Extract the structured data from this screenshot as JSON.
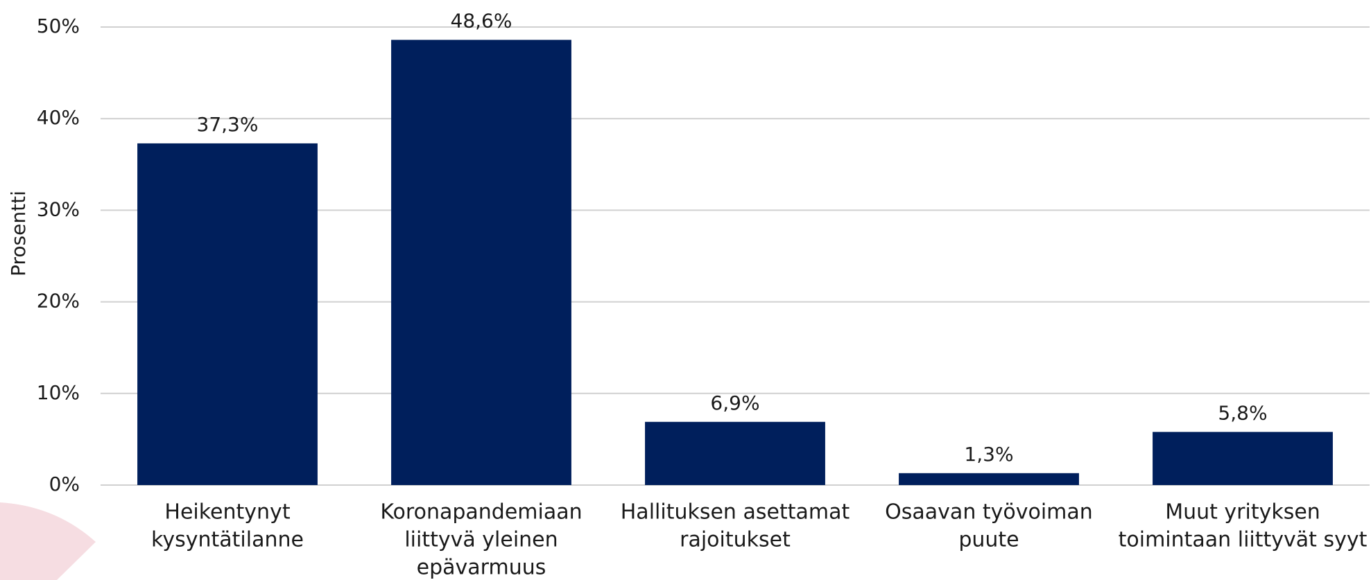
{
  "chart_data": {
    "type": "bar",
    "y_label": "Prosentti",
    "categories": [
      [
        "Heikentynyt",
        "kysyntätilanne"
      ],
      [
        "Koronapandemiaan",
        "liittyvä yleinen",
        "epävarmuus"
      ],
      [
        "Hallituksen asettamat",
        "rajoitukset"
      ],
      [
        "Osaavan työvoiman",
        "puute"
      ],
      [
        "Muut yrityksen",
        "toimintaan liittyvät syyt"
      ]
    ],
    "values": [
      37.3,
      48.6,
      6.9,
      1.3,
      5.8
    ],
    "value_labels": [
      "37,3%",
      "48,6%",
      "6,9%",
      "1,3%",
      "5,8%"
    ],
    "color": "#001f5c",
    "ylim": [
      0,
      50
    ],
    "yticks": [
      {
        "value": 0,
        "label": "0%"
      },
      {
        "value": 10,
        "label": "10%"
      },
      {
        "value": 20,
        "label": "20%"
      },
      {
        "value": 30,
        "label": "30%"
      },
      {
        "value": 40,
        "label": "40%"
      },
      {
        "value": 50,
        "label": "50%"
      }
    ],
    "grid": true
  }
}
